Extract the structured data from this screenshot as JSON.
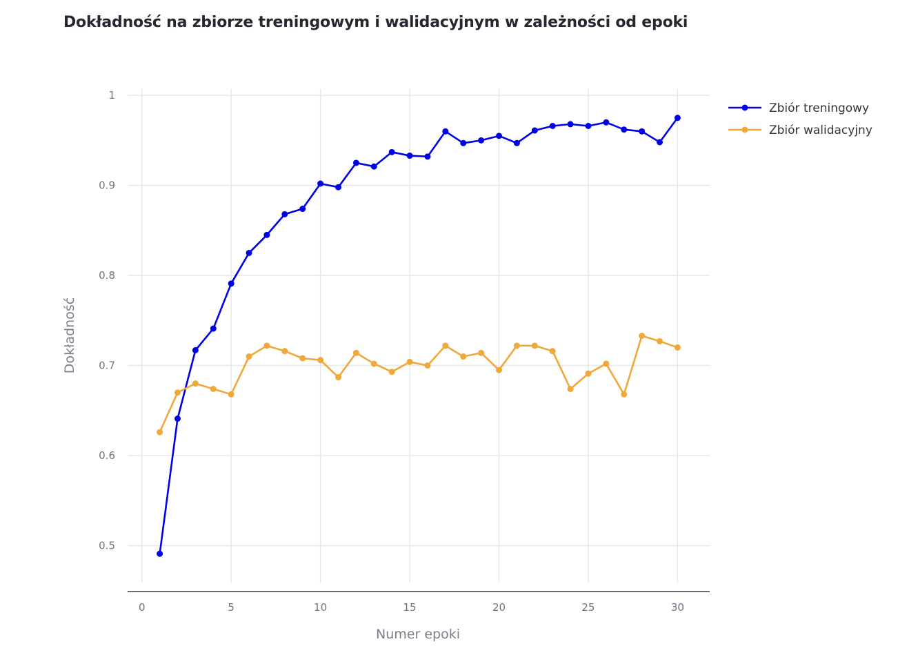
{
  "chart_data": {
    "type": "line",
    "title": "Dokładność na zbiorze treningowym i walidacyjnym w zależności od epoki",
    "xlabel": "Numer epoki",
    "ylabel": "Dokładność",
    "xlim": [
      -0.8,
      31.8
    ],
    "ylim": [
      0.459,
      1.007
    ],
    "x_ticks": [
      0,
      5,
      10,
      15,
      20,
      25,
      30
    ],
    "y_ticks": [
      0.5,
      0.6,
      0.7,
      0.8,
      0.9,
      1
    ],
    "x_tick_labels": [
      "0",
      "5",
      "10",
      "15",
      "20",
      "25",
      "30"
    ],
    "y_tick_labels": [
      "0.5",
      "0.6",
      "0.7",
      "0.8",
      "0.9",
      "1"
    ],
    "grid": true,
    "legend_position": "top-right",
    "x": [
      1,
      2,
      3,
      4,
      5,
      6,
      7,
      8,
      9,
      10,
      11,
      12,
      13,
      14,
      15,
      16,
      17,
      18,
      19,
      20,
      21,
      22,
      23,
      24,
      25,
      26,
      27,
      28,
      29,
      30
    ],
    "series": [
      {
        "name": "Zbiór treningowy",
        "color": "#0000e6",
        "values": [
          0.491,
          0.641,
          0.717,
          0.741,
          0.791,
          0.825,
          0.845,
          0.868,
          0.874,
          0.902,
          0.898,
          0.925,
          0.921,
          0.937,
          0.933,
          0.932,
          0.96,
          0.947,
          0.95,
          0.955,
          0.947,
          0.961,
          0.966,
          0.968,
          0.966,
          0.97,
          0.962,
          0.96,
          0.948,
          0.975
        ]
      },
      {
        "name": "Zbiór walidacyjny",
        "color": "#f0a83a",
        "values": [
          0.626,
          0.67,
          0.68,
          0.674,
          0.668,
          0.71,
          0.722,
          0.716,
          0.708,
          0.706,
          0.687,
          0.714,
          0.702,
          0.693,
          0.704,
          0.7,
          0.722,
          0.71,
          0.714,
          0.695,
          0.722,
          0.722,
          0.716,
          0.674,
          0.691,
          0.702,
          0.668,
          0.733,
          0.727,
          0.72
        ]
      }
    ]
  }
}
